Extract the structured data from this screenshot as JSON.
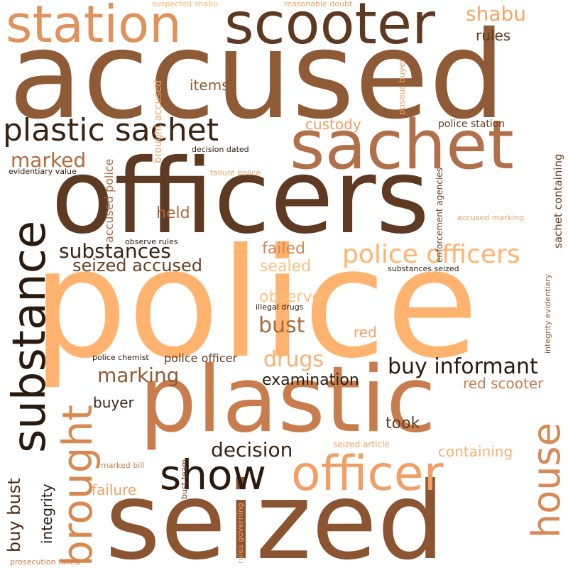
{
  "palette": [
    "#8f5a36",
    "#6b3f24",
    "#ffb36e",
    "#c97d4e",
    "#d38654",
    "#f0a066",
    "#3a2414",
    "#2b1a0e",
    "#a66a40"
  ],
  "words": [
    {
      "text": "police",
      "color": "#ffb36e"
    },
    {
      "text": "accused",
      "color": "#8f5a36"
    },
    {
      "text": "seized",
      "color": "#8b5531"
    },
    {
      "text": "officers",
      "color": "#5e3a22"
    },
    {
      "text": "plastic",
      "color": "#c97d4e"
    },
    {
      "text": "sachet",
      "color": "#b2704a"
    },
    {
      "text": "scooter",
      "color": "#5c3920"
    },
    {
      "text": "station",
      "color": "#e0925c"
    },
    {
      "text": "substance",
      "color": "#2b1a0e"
    },
    {
      "text": "officer",
      "color": "#f0a066"
    },
    {
      "text": "plastic sachet",
      "color": "#3a2414"
    },
    {
      "text": "house",
      "color": "#d88a56"
    },
    {
      "text": "brought",
      "color": "#d8894f"
    },
    {
      "text": "show",
      "color": "#2b1a0e"
    },
    {
      "text": "police officers",
      "color": "#ffb36e"
    },
    {
      "text": "buy informant",
      "color": "#2b1a0e"
    },
    {
      "text": "substances",
      "color": "#3a2414"
    },
    {
      "text": "marked",
      "color": "#b06c40"
    },
    {
      "text": "shabu",
      "color": "#f2a465"
    },
    {
      "text": "decision",
      "color": "#3a2414"
    },
    {
      "text": "seized accused",
      "color": "#6b3f24"
    },
    {
      "text": "marking",
      "color": "#8f5a36"
    },
    {
      "text": "bust",
      "color": "#a66a40"
    },
    {
      "text": "drugs",
      "color": "#f5b170"
    },
    {
      "text": "buy bust",
      "color": "#4a2f1c"
    },
    {
      "text": "integrity",
      "color": "#2b1a0e"
    },
    {
      "text": "custody",
      "color": "#f0a066"
    },
    {
      "text": "items",
      "color": "#8f5a36"
    },
    {
      "text": "rules",
      "color": "#5e3a22"
    },
    {
      "text": "held",
      "color": "#a66a40"
    },
    {
      "text": "failed",
      "color": "#d38654"
    },
    {
      "text": "sealed",
      "color": "#ffc080"
    },
    {
      "text": "observe",
      "color": "#ffc080"
    },
    {
      "text": "red",
      "color": "#f0a066"
    },
    {
      "text": "failure",
      "color": "#f0a066"
    },
    {
      "text": "examination",
      "color": "#2b1a0e"
    },
    {
      "text": "red scooter",
      "color": "#c97d4e"
    },
    {
      "text": "buyer",
      "color": "#3a2414"
    },
    {
      "text": "took",
      "color": "#5e3a22"
    },
    {
      "text": "containing",
      "color": "#f5b170"
    },
    {
      "text": "police officer",
      "color": "#5e3a22"
    },
    {
      "text": "accused police",
      "color": "#a66a40"
    },
    {
      "text": "brought accused",
      "color": "#f0a066"
    },
    {
      "text": "sachet containing",
      "color": "#6b3f24"
    },
    {
      "text": "enforcement agencies",
      "color": "#6b3f24"
    },
    {
      "text": "integrity evidentiary",
      "color": "#8f5a36"
    },
    {
      "text": "police station",
      "color": "#5e3a22"
    },
    {
      "text": "poseur buyer",
      "color": "#f0a066"
    },
    {
      "text": "suspected shabu",
      "color": "#ffb36e"
    },
    {
      "text": "reasonable doubt",
      "color": "#f0a066"
    },
    {
      "text": "decision dated",
      "color": "#2b1a0e"
    },
    {
      "text": "evidentiary value",
      "color": "#2b1a0e"
    },
    {
      "text": "failure police",
      "color": "#f0a066"
    },
    {
      "text": "accused marking",
      "color": "#f0a066"
    },
    {
      "text": "observe rules",
      "color": "#2b1a0e"
    },
    {
      "text": "substances seized",
      "color": "#2b1a0e"
    },
    {
      "text": "illegal drugs",
      "color": "#2b1a0e"
    },
    {
      "text": "police chemist",
      "color": "#2b1a0e"
    },
    {
      "text": "seized article",
      "color": "#f0a066"
    },
    {
      "text": "marked bill",
      "color": "#c97d4e"
    },
    {
      "text": "bust team",
      "color": "#6b3f24"
    },
    {
      "text": "rules governing",
      "color": "#f0a066"
    },
    {
      "text": "prosecution failed",
      "color": "#c97d4e"
    }
  ]
}
